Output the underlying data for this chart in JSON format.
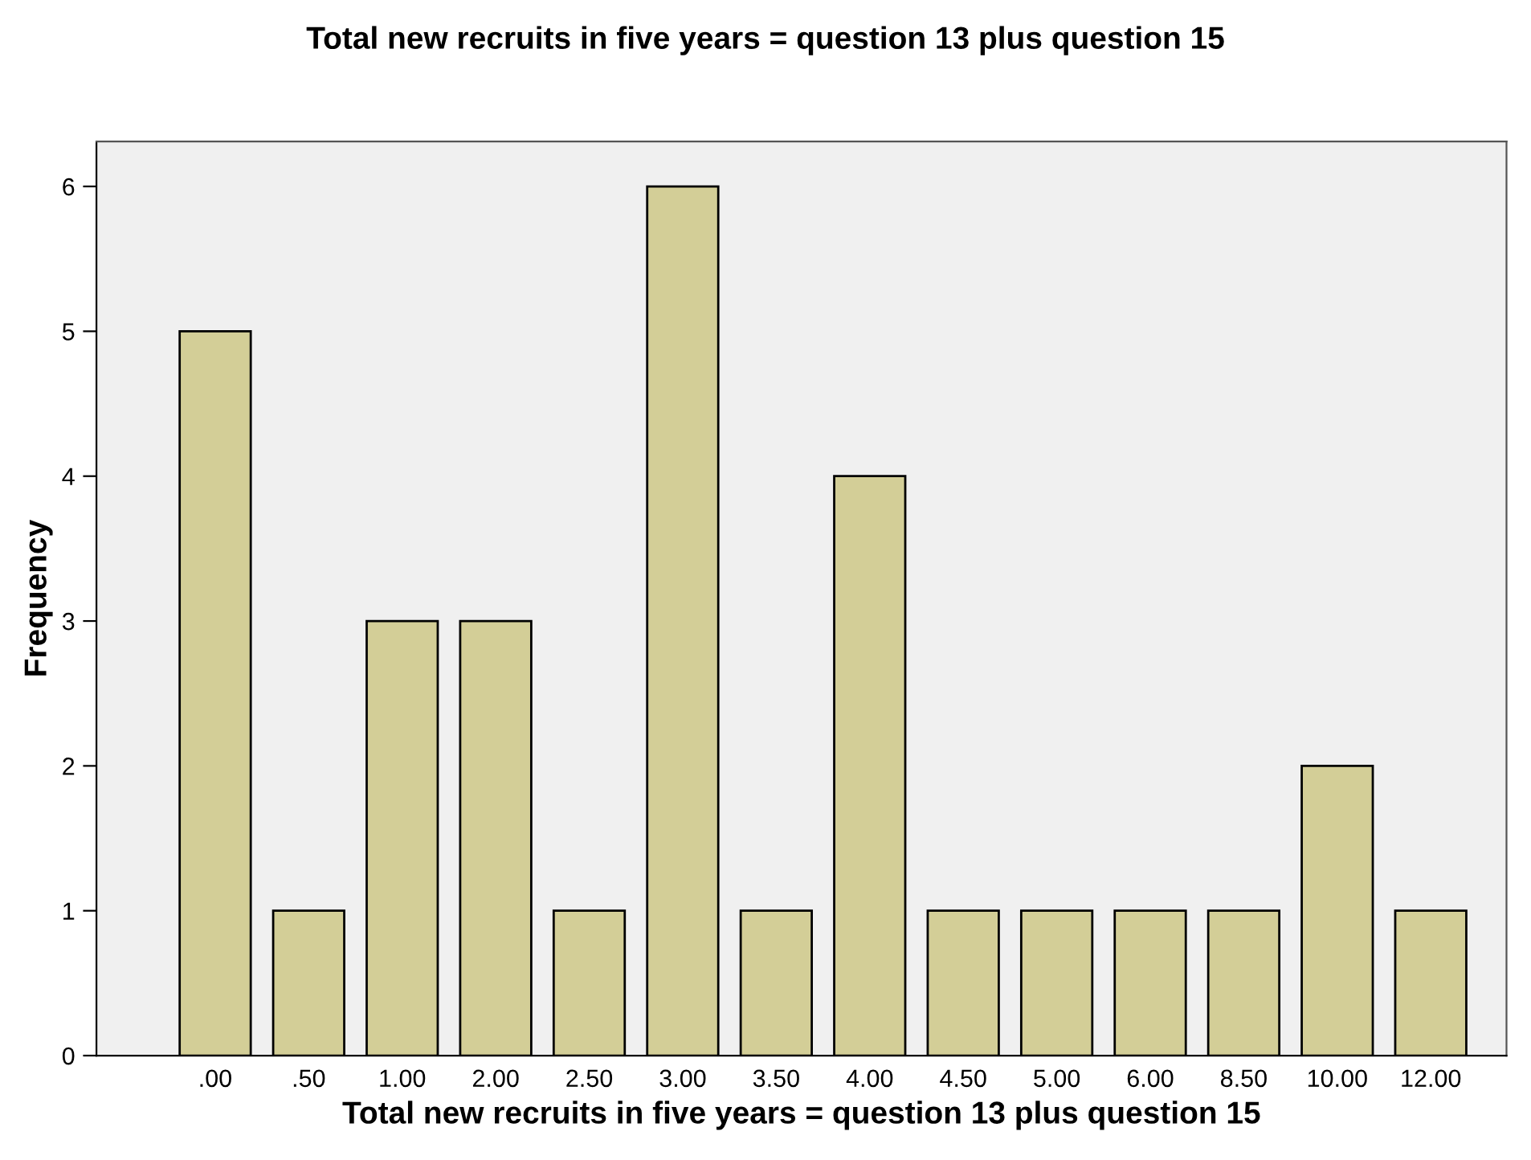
{
  "chart_data": {
    "type": "bar",
    "title": "Total new recruits in five years = question 13 plus question 15",
    "xlabel": "Total new recruits in five years = question 13 plus question 15",
    "ylabel": "Frequency",
    "categories": [
      ".00",
      ".50",
      "1.00",
      "2.00",
      "2.50",
      "3.00",
      "3.50",
      "4.00",
      "4.50",
      "5.00",
      "6.00",
      "8.50",
      "10.00",
      "12.00"
    ],
    "values": [
      5,
      1,
      3,
      3,
      1,
      6,
      1,
      4,
      1,
      1,
      1,
      1,
      2,
      1
    ],
    "color": "#d3ce97",
    "ylim": [
      0,
      6.31
    ],
    "yticks": [
      0,
      1,
      2,
      3,
      4,
      5,
      6
    ],
    "grid": false,
    "legend": false
  }
}
